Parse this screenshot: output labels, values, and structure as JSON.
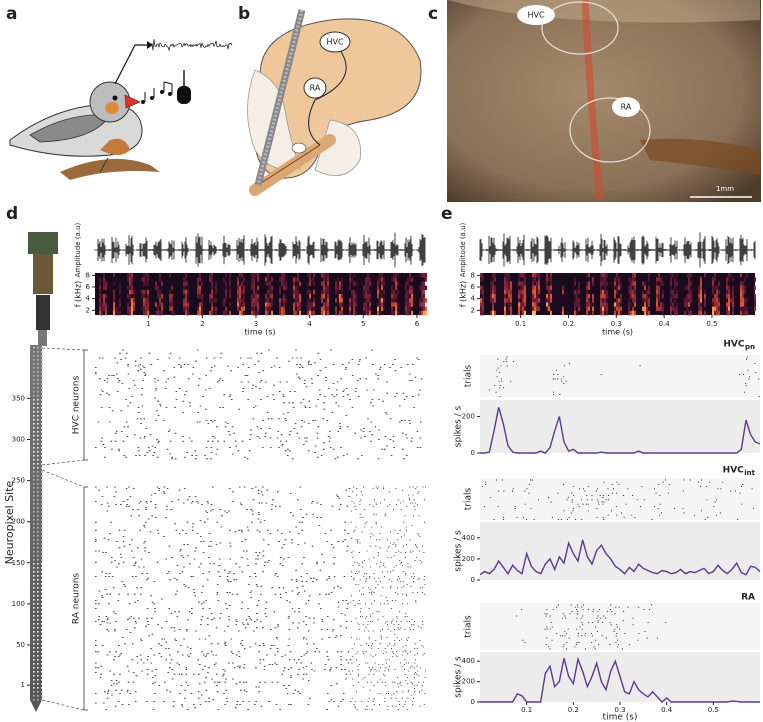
{
  "panel_labels": {
    "a": "a",
    "b": "b",
    "c": "c",
    "d": "d",
    "e": "e"
  },
  "panel_b": {
    "hvc": "HVC",
    "ra": "RA"
  },
  "panel_c": {
    "hvc": "HVC",
    "ra": "RA",
    "scale_bar": "1mm"
  },
  "chart_data": [
    {
      "type": "spectrogram",
      "amplitude_label": "Amplitude (a.u)",
      "ylabel": "f (kHz)",
      "ylim": [
        1.2,
        8.4
      ],
      "yticks": [
        2,
        4,
        6,
        8
      ],
      "xlabel": "time (s)",
      "xlim": [
        0,
        6.15
      ],
      "xticks": [
        1,
        2,
        3,
        4,
        5,
        6
      ]
    },
    {
      "type": "spectrogram",
      "amplitude_label": "Amplitude (a.u)",
      "ylabel": "f (kHz)",
      "ylim": [
        1.2,
        8.4
      ],
      "yticks": [
        2,
        4,
        6,
        8
      ],
      "xlabel": "time (s)",
      "xlim": [
        0.015,
        0.59
      ],
      "xticks": [
        0.1,
        0.2,
        0.3,
        0.4,
        0.5
      ]
    },
    {
      "type": "probe",
      "ylabel": "Neuropixel Site",
      "ylim": [
        -17,
        415
      ],
      "yticks": [
        1,
        50,
        100,
        150,
        200,
        250,
        300,
        350
      ],
      "groups": [
        "HVC neurons",
        "RA neurons"
      ]
    },
    {
      "type": "line",
      "title": "HVC",
      "title_subscript": "pn",
      "ylabel": "spikes / s",
      "raster_label": "trials",
      "color": "#5c3a8f",
      "x": [
        0,
        0.01,
        0.02,
        0.03,
        0.04,
        0.05,
        0.06,
        0.07,
        0.08,
        0.09,
        0.1,
        0.11,
        0.12,
        0.13,
        0.14,
        0.15,
        0.16,
        0.17,
        0.18,
        0.19,
        0.2,
        0.21,
        0.22,
        0.23,
        0.24,
        0.25,
        0.26,
        0.27,
        0.28,
        0.29,
        0.3,
        0.31,
        0.32,
        0.33,
        0.34,
        0.35,
        0.36,
        0.37,
        0.38,
        0.39,
        0.4,
        0.41,
        0.42,
        0.43,
        0.44,
        0.45,
        0.46,
        0.47,
        0.48,
        0.49,
        0.5,
        0.51,
        0.52,
        0.53,
        0.54,
        0.55,
        0.56,
        0.57,
        0.58,
        0.59,
        0.6
      ],
      "values": [
        0,
        0,
        5,
        120,
        250,
        160,
        40,
        5,
        0,
        0,
        0,
        0,
        0,
        10,
        0,
        30,
        120,
        200,
        60,
        10,
        20,
        0,
        0,
        0,
        0,
        0,
        5,
        0,
        0,
        0,
        0,
        0,
        0,
        0,
        10,
        0,
        0,
        0,
        0,
        0,
        0,
        0,
        0,
        0,
        0,
        0,
        0,
        0,
        0,
        0,
        0,
        0,
        0,
        0,
        0,
        0,
        20,
        180,
        100,
        60,
        50
      ],
      "xlim": [
        0,
        0.6
      ],
      "ylim": [
        0,
        290
      ],
      "yticks": [
        0,
        200
      ]
    },
    {
      "type": "line",
      "title": "HVC",
      "title_subscript": "int",
      "ylabel": "spikes / s",
      "raster_label": "trials",
      "color": "#5c3a8f",
      "x": [
        0,
        0.01,
        0.02,
        0.03,
        0.04,
        0.05,
        0.06,
        0.07,
        0.08,
        0.09,
        0.1,
        0.11,
        0.12,
        0.13,
        0.14,
        0.15,
        0.16,
        0.17,
        0.18,
        0.19,
        0.2,
        0.21,
        0.22,
        0.23,
        0.24,
        0.25,
        0.26,
        0.27,
        0.28,
        0.29,
        0.3,
        0.31,
        0.32,
        0.33,
        0.34,
        0.35,
        0.36,
        0.37,
        0.38,
        0.39,
        0.4,
        0.41,
        0.42,
        0.43,
        0.44,
        0.45,
        0.46,
        0.47,
        0.48,
        0.49,
        0.5,
        0.51,
        0.52,
        0.53,
        0.54,
        0.55,
        0.56,
        0.57,
        0.58,
        0.59,
        0.6
      ],
      "values": [
        50,
        80,
        60,
        100,
        180,
        120,
        60,
        140,
        90,
        60,
        250,
        130,
        80,
        60,
        150,
        200,
        100,
        220,
        160,
        350,
        250,
        180,
        380,
        220,
        150,
        280,
        330,
        250,
        200,
        130,
        100,
        60,
        120,
        80,
        150,
        110,
        90,
        70,
        60,
        90,
        80,
        60,
        70,
        100,
        60,
        80,
        70,
        90,
        110,
        60,
        80,
        140,
        90,
        60,
        100,
        160,
        70,
        50,
        130,
        120,
        80
      ],
      "xlim": [
        0,
        0.6
      ],
      "ylim": [
        0,
        550
      ],
      "yticks": [
        0,
        200,
        400
      ]
    },
    {
      "type": "line",
      "title": "RA",
      "ylabel": "spikes / s",
      "raster_label": "trials",
      "color": "#5c3a8f",
      "x": [
        0,
        0.01,
        0.02,
        0.03,
        0.04,
        0.05,
        0.06,
        0.07,
        0.08,
        0.09,
        0.1,
        0.11,
        0.12,
        0.13,
        0.14,
        0.15,
        0.16,
        0.17,
        0.18,
        0.19,
        0.2,
        0.21,
        0.22,
        0.23,
        0.24,
        0.25,
        0.26,
        0.27,
        0.28,
        0.29,
        0.3,
        0.31,
        0.32,
        0.33,
        0.34,
        0.35,
        0.36,
        0.37,
        0.38,
        0.39,
        0.4,
        0.41,
        0.42,
        0.43,
        0.44,
        0.45,
        0.46,
        0.47,
        0.48,
        0.49,
        0.5,
        0.51,
        0.52,
        0.53,
        0.54,
        0.55,
        0.56,
        0.57,
        0.58,
        0.59,
        0.6
      ],
      "values": [
        0,
        0,
        0,
        0,
        0,
        0,
        0,
        0,
        80,
        60,
        0,
        0,
        0,
        0,
        280,
        350,
        150,
        200,
        430,
        250,
        180,
        420,
        300,
        150,
        250,
        380,
        200,
        120,
        300,
        400,
        250,
        100,
        80,
        200,
        120,
        80,
        50,
        100,
        50,
        0,
        40,
        0,
        0,
        0,
        0,
        0,
        0,
        0,
        0,
        0,
        0,
        0,
        0,
        0,
        10,
        5,
        0,
        0,
        0,
        0,
        0
      ],
      "xlim": [
        0,
        0.6
      ],
      "ylim": [
        0,
        490
      ],
      "yticks": [
        0,
        200,
        400
      ],
      "xticks": [
        0.1,
        0.2,
        0.3,
        0.4,
        0.5
      ],
      "xlabel": "time (s)"
    }
  ]
}
